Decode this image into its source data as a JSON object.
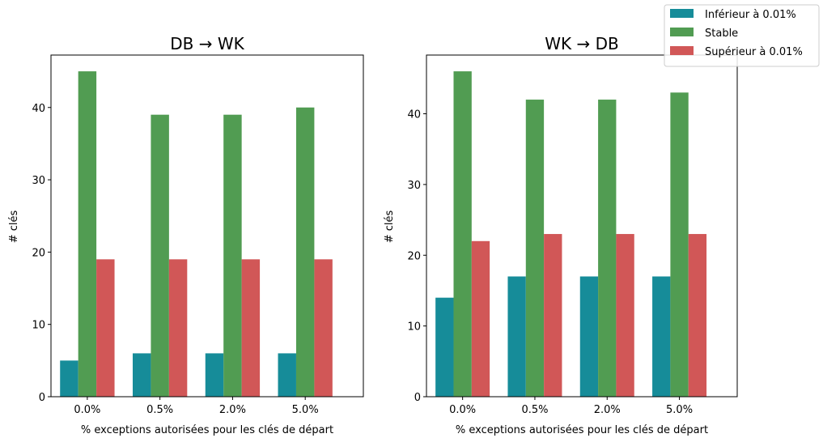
{
  "chart_data": [
    {
      "type": "bar",
      "title": "DB → WK",
      "xlabel": "% exceptions autorisées pour les clés de départ",
      "ylabel": "# clés",
      "categories": [
        "0.0%",
        "0.5%",
        "2.0%",
        "5.0%"
      ],
      "ylim": [
        0,
        47.25
      ],
      "yticks": [
        0,
        10,
        20,
        30,
        40
      ],
      "series": [
        {
          "name": "Inférieur à 0.01%",
          "values": [
            5,
            6,
            6,
            6
          ]
        },
        {
          "name": "Stable",
          "values": [
            45,
            39,
            39,
            40
          ]
        },
        {
          "name": "Supérieur à 0.01%",
          "values": [
            19,
            19,
            19,
            19
          ]
        }
      ],
      "grid": false
    },
    {
      "type": "bar",
      "title": "WK → DB",
      "xlabel": "% exceptions autorisées pour les clés de départ",
      "ylabel": "# clés",
      "categories": [
        "0.0%",
        "0.5%",
        "2.0%",
        "5.0%"
      ],
      "ylim": [
        0,
        48.3
      ],
      "yticks": [
        0,
        10,
        20,
        30,
        40
      ],
      "series": [
        {
          "name": "Inférieur à 0.01%",
          "values": [
            14,
            17,
            17,
            17
          ]
        },
        {
          "name": "Stable",
          "values": [
            46,
            42,
            42,
            43
          ]
        },
        {
          "name": "Supérieur à 0.01%",
          "values": [
            22,
            23,
            23,
            23
          ]
        }
      ],
      "grid": false
    }
  ],
  "legend": {
    "placement": "top-right",
    "entries": [
      "Inférieur à 0.01%",
      "Stable",
      "Supérieur à 0.01%"
    ]
  },
  "colors": {
    "Inférieur à 0.01%": "#168c99",
    "Stable": "#519c52",
    "Supérieur à 0.01%": "#d15757"
  }
}
